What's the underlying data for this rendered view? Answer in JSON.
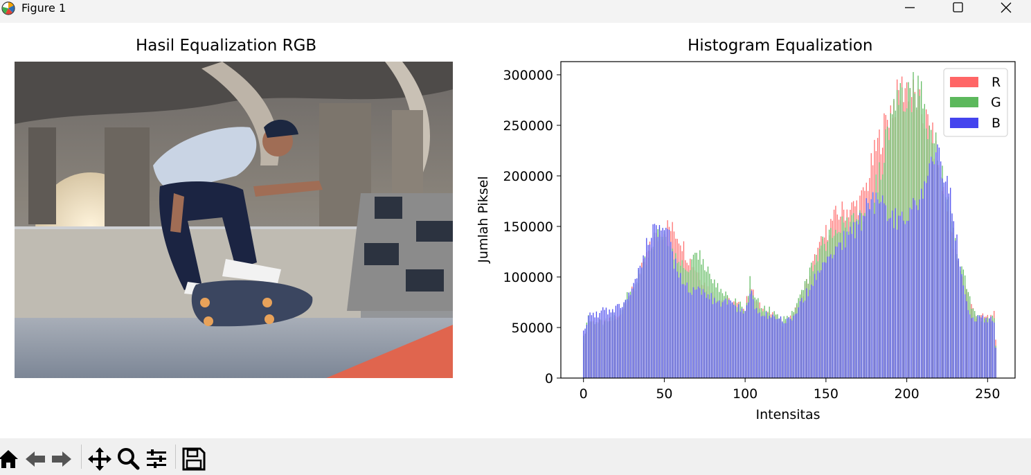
{
  "window": {
    "title": "Figure 1",
    "icons": [
      "matplotlib-icon",
      "minimize-icon",
      "maximize-icon",
      "close-icon"
    ]
  },
  "image_panel": {
    "title": "Hasil Equalization RGB",
    "content": "photo of a skateboarder performing a kickflip trick under a highway overpass at a skatepark"
  },
  "chart_data": {
    "type": "bar",
    "title": "Histogram Equalization",
    "xlabel": "Intensitas",
    "ylabel": "Jumlah Piksel",
    "xlim": [
      -14,
      267
    ],
    "ylim": [
      0,
      313000
    ],
    "xticks": [
      "0",
      "50",
      "100",
      "150",
      "200",
      "250"
    ],
    "yticks": [
      "0",
      "50000",
      "100000",
      "150000",
      "200000",
      "250000",
      "300000"
    ],
    "legend_position": "top-right",
    "series": [
      {
        "name": "R",
        "color": "#ff6666",
        "anchors": [
          [
            0,
            35000
          ],
          [
            3,
            58000
          ],
          [
            8,
            57000
          ],
          [
            13,
            55000
          ],
          [
            18,
            60000
          ],
          [
            22,
            62000
          ],
          [
            27,
            80000
          ],
          [
            32,
            92000
          ],
          [
            36,
            110000
          ],
          [
            40,
            128000
          ],
          [
            44,
            140000
          ],
          [
            48,
            148000
          ],
          [
            52,
            154000
          ],
          [
            56,
            150000
          ],
          [
            60,
            142000
          ],
          [
            64,
            125000
          ],
          [
            68,
            115000
          ],
          [
            72,
            105000
          ],
          [
            76,
            93000
          ],
          [
            80,
            85000
          ],
          [
            85,
            80000
          ],
          [
            90,
            78000
          ],
          [
            95,
            74000
          ],
          [
            100,
            70000
          ],
          [
            103,
            96000
          ],
          [
            106,
            80000
          ],
          [
            110,
            70000
          ],
          [
            115,
            67000
          ],
          [
            120,
            58000
          ],
          [
            124,
            55000
          ],
          [
            128,
            60000
          ],
          [
            132,
            72000
          ],
          [
            136,
            88000
          ],
          [
            140,
            105000
          ],
          [
            144,
            125000
          ],
          [
            148,
            140000
          ],
          [
            152,
            155000
          ],
          [
            156,
            165000
          ],
          [
            160,
            170000
          ],
          [
            164,
            172000
          ],
          [
            168,
            175000
          ],
          [
            172,
            182000
          ],
          [
            176,
            200000
          ],
          [
            179,
            222000
          ],
          [
            182,
            238000
          ],
          [
            185,
            250000
          ],
          [
            188,
            265000
          ],
          [
            191,
            278000
          ],
          [
            194,
            285000
          ],
          [
            197,
            295000
          ],
          [
            200,
            298000
          ],
          [
            203,
            292000
          ],
          [
            206,
            283000
          ],
          [
            209,
            272000
          ],
          [
            212,
            262000
          ],
          [
            215,
            250000
          ],
          [
            218,
            230000
          ],
          [
            221,
            205000
          ],
          [
            224,
            180000
          ],
          [
            227,
            150000
          ],
          [
            230,
            125000
          ],
          [
            233,
            110000
          ],
          [
            236,
            98000
          ],
          [
            239,
            78000
          ],
          [
            242,
            65000
          ],
          [
            246,
            62000
          ],
          [
            250,
            62000
          ],
          [
            254,
            64000
          ],
          [
            256,
            38000
          ]
        ]
      },
      {
        "name": "G",
        "color": "#5cb85c",
        "anchors": [
          [
            0,
            42000
          ],
          [
            3,
            60000
          ],
          [
            8,
            58000
          ],
          [
            13,
            55000
          ],
          [
            18,
            64000
          ],
          [
            22,
            62000
          ],
          [
            27,
            82000
          ],
          [
            32,
            95000
          ],
          [
            36,
            112000
          ],
          [
            40,
            128000
          ],
          [
            44,
            142000
          ],
          [
            48,
            147000
          ],
          [
            52,
            142000
          ],
          [
            56,
            128000
          ],
          [
            60,
            118000
          ],
          [
            64,
            112000
          ],
          [
            68,
            120000
          ],
          [
            72,
            123000
          ],
          [
            76,
            115000
          ],
          [
            80,
            102000
          ],
          [
            85,
            88000
          ],
          [
            90,
            82000
          ],
          [
            95,
            76000
          ],
          [
            100,
            72000
          ],
          [
            103,
            98000
          ],
          [
            106,
            82000
          ],
          [
            110,
            73000
          ],
          [
            115,
            68000
          ],
          [
            120,
            62000
          ],
          [
            124,
            60000
          ],
          [
            128,
            64000
          ],
          [
            132,
            75000
          ],
          [
            136,
            90000
          ],
          [
            140,
            108000
          ],
          [
            144,
            125000
          ],
          [
            148,
            135000
          ],
          [
            152,
            142000
          ],
          [
            156,
            150000
          ],
          [
            160,
            155000
          ],
          [
            164,
            158000
          ],
          [
            168,
            160000
          ],
          [
            172,
            162000
          ],
          [
            176,
            175000
          ],
          [
            179,
            186000
          ],
          [
            182,
            200000
          ],
          [
            185,
            222000
          ],
          [
            188,
            245000
          ],
          [
            191,
            262000
          ],
          [
            194,
            278000
          ],
          [
            197,
            285000
          ],
          [
            200,
            288000
          ],
          [
            203,
            292000
          ],
          [
            206,
            293000
          ],
          [
            209,
            288000
          ],
          [
            212,
            262000
          ],
          [
            215,
            255000
          ],
          [
            218,
            235000
          ],
          [
            221,
            212000
          ],
          [
            224,
            190000
          ],
          [
            227,
            168000
          ],
          [
            230,
            140000
          ],
          [
            233,
            118000
          ],
          [
            236,
            100000
          ],
          [
            239,
            78000
          ],
          [
            242,
            65000
          ],
          [
            246,
            60000
          ],
          [
            250,
            58000
          ],
          [
            254,
            60000
          ],
          [
            256,
            32000
          ]
        ]
      },
      {
        "name": "B",
        "color": "#4444ee",
        "anchors": [
          [
            0,
            47000
          ],
          [
            3,
            63000
          ],
          [
            8,
            65000
          ],
          [
            13,
            68000
          ],
          [
            18,
            70000
          ],
          [
            22,
            72000
          ],
          [
            27,
            85000
          ],
          [
            32,
            100000
          ],
          [
            36,
            120000
          ],
          [
            40,
            140000
          ],
          [
            44,
            150000
          ],
          [
            48,
            152000
          ],
          [
            52,
            148000
          ],
          [
            56,
            120000
          ],
          [
            60,
            100000
          ],
          [
            64,
            95000
          ],
          [
            68,
            90000
          ],
          [
            72,
            92000
          ],
          [
            76,
            88000
          ],
          [
            80,
            80000
          ],
          [
            85,
            78000
          ],
          [
            90,
            75000
          ],
          [
            95,
            72000
          ],
          [
            100,
            65000
          ],
          [
            103,
            90000
          ],
          [
            106,
            75000
          ],
          [
            110,
            65000
          ],
          [
            115,
            62000
          ],
          [
            120,
            60000
          ],
          [
            124,
            58000
          ],
          [
            128,
            60000
          ],
          [
            132,
            68000
          ],
          [
            136,
            80000
          ],
          [
            140,
            92000
          ],
          [
            144,
            105000
          ],
          [
            148,
            115000
          ],
          [
            152,
            125000
          ],
          [
            156,
            132000
          ],
          [
            160,
            140000
          ],
          [
            164,
            145000
          ],
          [
            168,
            150000
          ],
          [
            172,
            160000
          ],
          [
            176,
            175000
          ],
          [
            179,
            180000
          ],
          [
            182,
            180000
          ],
          [
            185,
            175000
          ],
          [
            188,
            170000
          ],
          [
            191,
            165000
          ],
          [
            194,
            160000
          ],
          [
            197,
            165000
          ],
          [
            200,
            170000
          ],
          [
            203,
            175000
          ],
          [
            206,
            180000
          ],
          [
            209,
            190000
          ],
          [
            212,
            205000
          ],
          [
            215,
            215000
          ],
          [
            218,
            228000
          ],
          [
            221,
            222000
          ],
          [
            224,
            208000
          ],
          [
            227,
            185000
          ],
          [
            230,
            150000
          ],
          [
            233,
            110000
          ],
          [
            236,
            80000
          ],
          [
            239,
            65000
          ],
          [
            242,
            60000
          ],
          [
            246,
            62000
          ],
          [
            250,
            60000
          ],
          [
            254,
            58000
          ],
          [
            256,
            30000
          ]
        ]
      }
    ]
  },
  "toolbar": {
    "buttons": [
      "home-icon",
      "back-icon",
      "forward-icon",
      "pan-icon",
      "zoom-icon",
      "configure-subplots-icon",
      "save-icon"
    ]
  }
}
